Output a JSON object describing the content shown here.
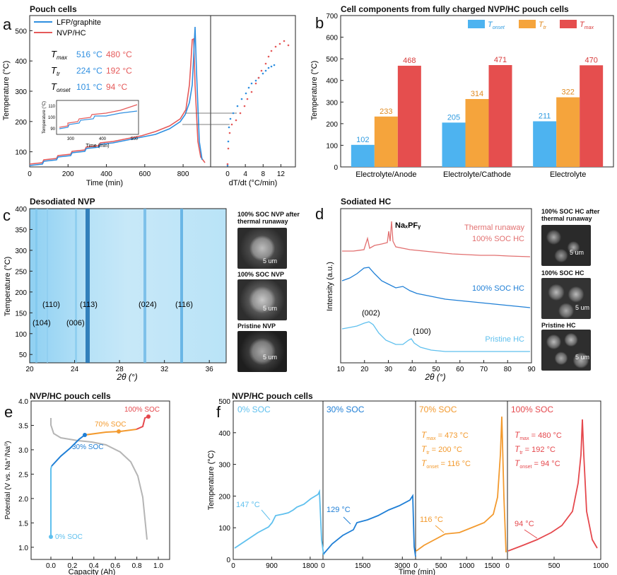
{
  "panel_a": {
    "letter": "a",
    "title": "Pouch cells",
    "legend": [
      {
        "name": "LFP/graphite",
        "color": "#2f8fe0"
      },
      {
        "name": "NVP/HC",
        "color": "#e55a5a"
      }
    ],
    "params": [
      {
        "label": "T",
        "sub": "max",
        "lfp": "516 °C",
        "nvp": "480 °C"
      },
      {
        "label": "T",
        "sub": "tr",
        "lfp": "224 °C",
        "nvp": "192 °C"
      },
      {
        "label": "T",
        "sub": "onset",
        "lfp": "101 °C",
        "nvp": "94 °C"
      }
    ],
    "xlabel": "Time (min)",
    "ylabel": "Temperature (°C)",
    "xticks": [
      "0",
      "200",
      "400",
      "600",
      "800"
    ],
    "yticks": [
      "100",
      "200",
      "300",
      "400",
      "500"
    ],
    "xlabel2": "dT/dt (°C/min)",
    "xticks2": [
      "0",
      "4",
      "8",
      "12"
    ],
    "inset": {
      "xlabel": "Time (min)",
      "ylabel": "Temperature (°C)",
      "xticks": [
        "300",
        "400",
        "500"
      ],
      "yticks": [
        "90",
        "100",
        "110"
      ]
    }
  },
  "panel_b": {
    "letter": "b",
    "title": "Cell components from fully charged NVP/HC pouch cells",
    "ylabel": "Temperature (°C)",
    "yticks": [
      "0",
      "100",
      "200",
      "300",
      "400",
      "500",
      "600",
      "700"
    ],
    "legend": [
      {
        "label": "T",
        "sub": "onset",
        "color": "#4db3f0"
      },
      {
        "label": "T",
        "sub": "tr",
        "color": "#f5a43c"
      },
      {
        "label": "T",
        "sub": "max",
        "color": "#e54e4e"
      }
    ]
  },
  "chart_data": {
    "type": "bar",
    "title": "Cell components from fully charged NVP/HC pouch cells",
    "categories": [
      "Electrolyte/Anode",
      "Electrolyte/Cathode",
      "Electrolyte"
    ],
    "series": [
      {
        "name": "T_onset",
        "values": [
          102,
          205,
          211
        ]
      },
      {
        "name": "T_tr",
        "values": [
          233,
          314,
          322
        ]
      },
      {
        "name": "T_max",
        "values": [
          468,
          471,
          470
        ]
      }
    ],
    "ylabel": "Temperature (°C)",
    "ylim": [
      0,
      700
    ]
  },
  "panel_c": {
    "letter": "c",
    "title": "Desodiated NVP",
    "ylabel": "Temperature (°C)",
    "xlabel": "2θ (°)",
    "xticks": [
      "20",
      "24",
      "28",
      "32",
      "36"
    ],
    "yticks": [
      "50",
      "100",
      "150",
      "200",
      "250",
      "300",
      "350",
      "400"
    ],
    "peaks": [
      {
        "label": "(110)",
        "row": "upper"
      },
      {
        "label": "(113)",
        "row": "upper"
      },
      {
        "label": "(024)",
        "row": "upper"
      },
      {
        "label": "(116)",
        "row": "upper"
      },
      {
        "label": "(104)",
        "row": "lower"
      },
      {
        "label": "(006)",
        "row": "lower"
      }
    ],
    "sem": [
      {
        "caption": "100% SOC NVP after thermal runaway",
        "scale": "5 um"
      },
      {
        "caption": "100% SOC NVP",
        "scale": "5 um"
      },
      {
        "caption": "Pristine NVP",
        "scale": "5 um"
      }
    ]
  },
  "panel_d": {
    "letter": "d",
    "title": "Sodiated HC",
    "ylabel": "Intensity (a.u.)",
    "xlabel": "2θ (°)",
    "xticks": [
      "10",
      "20",
      "30",
      "40",
      "50",
      "60",
      "70",
      "80",
      "90"
    ],
    "annotations": {
      "naxpfy": "NaₓPFᵧ",
      "p002": "(002)",
      "p100": "(100)"
    },
    "curves": [
      {
        "label1": "Thermal runaway",
        "label2": "100% SOC HC",
        "color": "#e27070"
      },
      {
        "label1": "100% SOC HC",
        "label2": "",
        "color": "#1f7fd6"
      },
      {
        "label1": "Pristine HC",
        "label2": "",
        "color": "#5fc0ee"
      }
    ],
    "sem": [
      {
        "caption": "100% SOC  HC after thermal runaway",
        "scale": "5 um"
      },
      {
        "caption": "100% SOC HC",
        "scale": "5 um"
      },
      {
        "caption": "Pristine HC",
        "scale": "5 um"
      }
    ]
  },
  "panel_e": {
    "letter": "e",
    "title": "NVP/HC pouch cells",
    "xlabel": "Capacity (Ah)",
    "ylabel": "Potential (V vs. Na⁺/Na⁰)",
    "xticks": [
      "0.0",
      "0.2",
      "0.4",
      "0.6",
      "0.8",
      "1.0"
    ],
    "yticks": [
      "1.0",
      "1.5",
      "2.0",
      "2.5",
      "3.0",
      "3.5",
      "4.0"
    ],
    "soc_labels": [
      {
        "text": "0% SOC",
        "color": "#5fc0ee"
      },
      {
        "text": "30% SOC",
        "color": "#1f7fd6"
      },
      {
        "text": "70% SOC",
        "color": "#f39a2e"
      },
      {
        "text": "100% SOC",
        "color": "#e5484d"
      }
    ]
  },
  "panel_f": {
    "letter": "f",
    "title": "NVP/HC pouch cells",
    "xlabel": "Time (min)",
    "ylabel": "Temperature (°C)",
    "yticks": [
      "0",
      "100",
      "200",
      "300",
      "400",
      "500"
    ],
    "segments": [
      {
        "title": "0% SOC",
        "color": "#5fc0ee",
        "annot": "147 °C",
        "xticks": [
          "0",
          "900",
          "1800"
        ]
      },
      {
        "title": "30% SOC",
        "color": "#1f7fd6",
        "annot": "129 °C",
        "xticks": [
          "0",
          "1500",
          "3000"
        ]
      },
      {
        "title": "70% SOC",
        "color": "#f39a2e",
        "annot": "116 °C",
        "xticks": [
          "0",
          "500",
          "1000",
          "1500"
        ],
        "params": [
          {
            "label": "T",
            "sub": "max",
            "value": " = 473 °C"
          },
          {
            "label": "T",
            "sub": "tr",
            "value": "   = 200 °C"
          },
          {
            "label": "T",
            "sub": "onset",
            "value": " = 116 °C"
          }
        ]
      },
      {
        "title": "100% SOC",
        "color": "#e5484d",
        "annot": "94 °C",
        "xticks": [
          "0",
          "500",
          "1000"
        ],
        "params": [
          {
            "label": "T",
            "sub": "max",
            "value": " = 480 °C"
          },
          {
            "label": "T",
            "sub": "tr",
            "value": "   = 192 °C"
          },
          {
            "label": "T",
            "sub": "onset",
            "value": " = 94 °C"
          }
        ]
      }
    ]
  }
}
